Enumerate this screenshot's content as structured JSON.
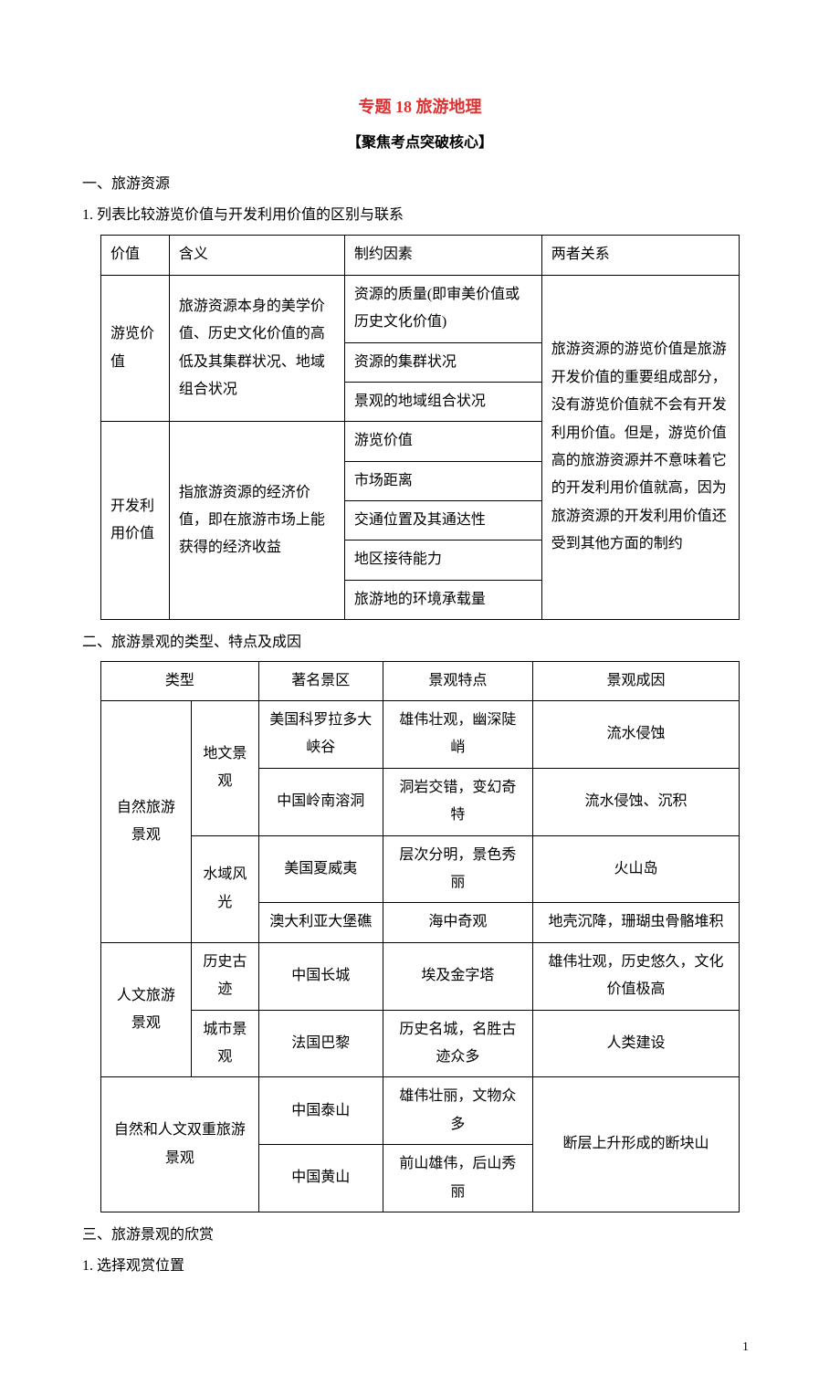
{
  "title": "专题 18  旅游地理",
  "subtitle": "【聚焦考点突破核心】",
  "section1": "一、旅游资源",
  "item1": "1. 列表比较游览价值与开发利用价值的区别与联系",
  "table1": {
    "header": {
      "c1": "价值",
      "c2": "含义",
      "c3": "制约因素",
      "c4": "两者关系"
    },
    "rows": {
      "r1c1": "游览价值",
      "r1c2": "旅游资源本身的美学价值、历史文化价值的高低及其集群状况、地域组合状况",
      "r1c3a": "资源的质量(即审美价值或历史文化价值)",
      "r1c3b": "资源的集群状况",
      "r1c3c": "景观的地域组合状况",
      "r2c1": "开发利用价值",
      "r2c2": "指旅游资源的经济价值，即在旅游市场上能获得的经济收益",
      "r2c3a": "游览价值",
      "r2c3b": "市场距离",
      "r2c3c": "交通位置及其通达性",
      "r2c3d": "地区接待能力",
      "r2c3e": "旅游地的环境承载量",
      "rel": "旅游资源的游览价值是旅游开发价值的重要组成部分，没有游览价值就不会有开发利用价值。但是，游览价值高的旅游资源并不意味着它的开发利用价值就高，因为旅游资源的开发利用价值还受到其他方面的制约"
    }
  },
  "section2": "二、旅游景观的类型、特点及成因",
  "table2": {
    "header": {
      "c1": "类型",
      "c2": "著名景区",
      "c3": "景观特点",
      "c4": "景观成因"
    },
    "rows": {
      "g1": "自然旅游景观",
      "g1a": "地文景观",
      "g1a1_site": "美国科罗拉多大峡谷",
      "g1a1_feat": "雄伟壮观，幽深陡峭",
      "g1a1_cause": "流水侵蚀",
      "g1a2_site": "中国岭南溶洞",
      "g1a2_feat": "洞岩交错，变幻奇特",
      "g1a2_cause": "流水侵蚀、沉积",
      "g1b": "水域风光",
      "g1b1_site": "美国夏威夷",
      "g1b1_feat": "层次分明，景色秀丽",
      "g1b1_cause": "火山岛",
      "g1b2_site": "澳大利亚大堡礁",
      "g1b2_feat": "海中奇观",
      "g1b2_cause": "地壳沉降，珊瑚虫骨骼堆积",
      "g2": "人文旅游景观",
      "g2a": "历史古迹",
      "g2a1_site": "中国长城",
      "g2a1_feat": "埃及金字塔",
      "g2a1_cause": "雄伟壮观，历史悠久，文化价值极高",
      "g2b": "城市景观",
      "g2b1_site": "法国巴黎",
      "g2b1_feat": "历史名城，名胜古迹众多",
      "g2b1_cause": "人类建设",
      "g3": "自然和人文双重旅游景观",
      "g3a_site": "中国泰山",
      "g3a_feat": "雄伟壮丽，文物众多",
      "g3b_site": "中国黄山",
      "g3b_feat": "前山雄伟，后山秀丽",
      "g3_cause": "断层上升形成的断块山"
    }
  },
  "section3": "三、旅游景观的欣赏",
  "item3": "1. 选择观赏位置",
  "pagenum": "1"
}
